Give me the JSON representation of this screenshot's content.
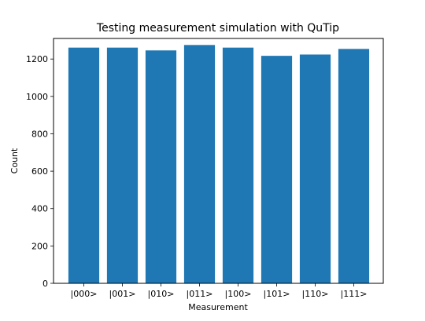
{
  "chart_data": {
    "type": "bar",
    "title": "Testing measurement simulation with QuTip",
    "xlabel": "Measurement",
    "ylabel": "Count",
    "categories": [
      "|000>",
      "|001>",
      "|010>",
      "|011>",
      "|100>",
      "|101>",
      "|110>",
      "|111>"
    ],
    "values": [
      1261,
      1261,
      1246,
      1275,
      1261,
      1217,
      1224,
      1254
    ],
    "ylim": [
      0,
      1310
    ],
    "yticks": [
      0,
      200,
      400,
      600,
      800,
      1000,
      1200
    ],
    "grid": false,
    "bar_color": "#1f77b4"
  }
}
